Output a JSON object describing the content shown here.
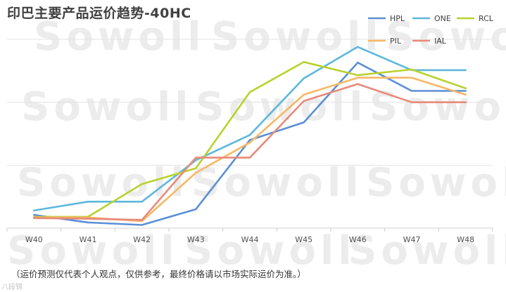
{
  "title": "印巴主要产品运价趋势-40HC",
  "footnote": "（运价预测仅代表个人观点，仅供参考，最终价格请以市场实际运价为准。）",
  "corner_mark": "八段锦",
  "watermark": "Sowoll",
  "chart_data": {
    "type": "line",
    "title": "印巴主要产品运价趋势-40HC",
    "categories": [
      "W40",
      "W41",
      "W42",
      "W43",
      "W44",
      "W45",
      "W46",
      "W47",
      "W48"
    ],
    "ylim": [
      0,
      3
    ],
    "grid": true,
    "legend_position": "top-right",
    "series": [
      {
        "name": "HPL",
        "color": "#5b8fd6",
        "values": [
          0.21,
          0.09,
          0.05,
          0.3,
          1.4,
          1.68,
          2.63,
          2.18,
          2.18
        ]
      },
      {
        "name": "ONE",
        "color": "#5db8dc",
        "values": [
          0.28,
          0.42,
          0.42,
          1.08,
          1.48,
          2.38,
          2.88,
          2.51,
          2.51
        ]
      },
      {
        "name": "RCL",
        "color": "#b9d12e",
        "values": [
          0.18,
          0.18,
          0.7,
          0.95,
          2.16,
          2.64,
          2.43,
          2.52,
          2.22
        ]
      },
      {
        "name": "PIL",
        "color": "#f6b864",
        "values": [
          0.17,
          0.17,
          0.11,
          0.88,
          1.36,
          2.12,
          2.39,
          2.39,
          2.12
        ]
      },
      {
        "name": "IAL",
        "color": "#e8897a",
        "values": [
          0.16,
          0.15,
          0.13,
          1.12,
          1.12,
          2.02,
          2.29,
          2.0,
          2.0
        ]
      }
    ]
  }
}
